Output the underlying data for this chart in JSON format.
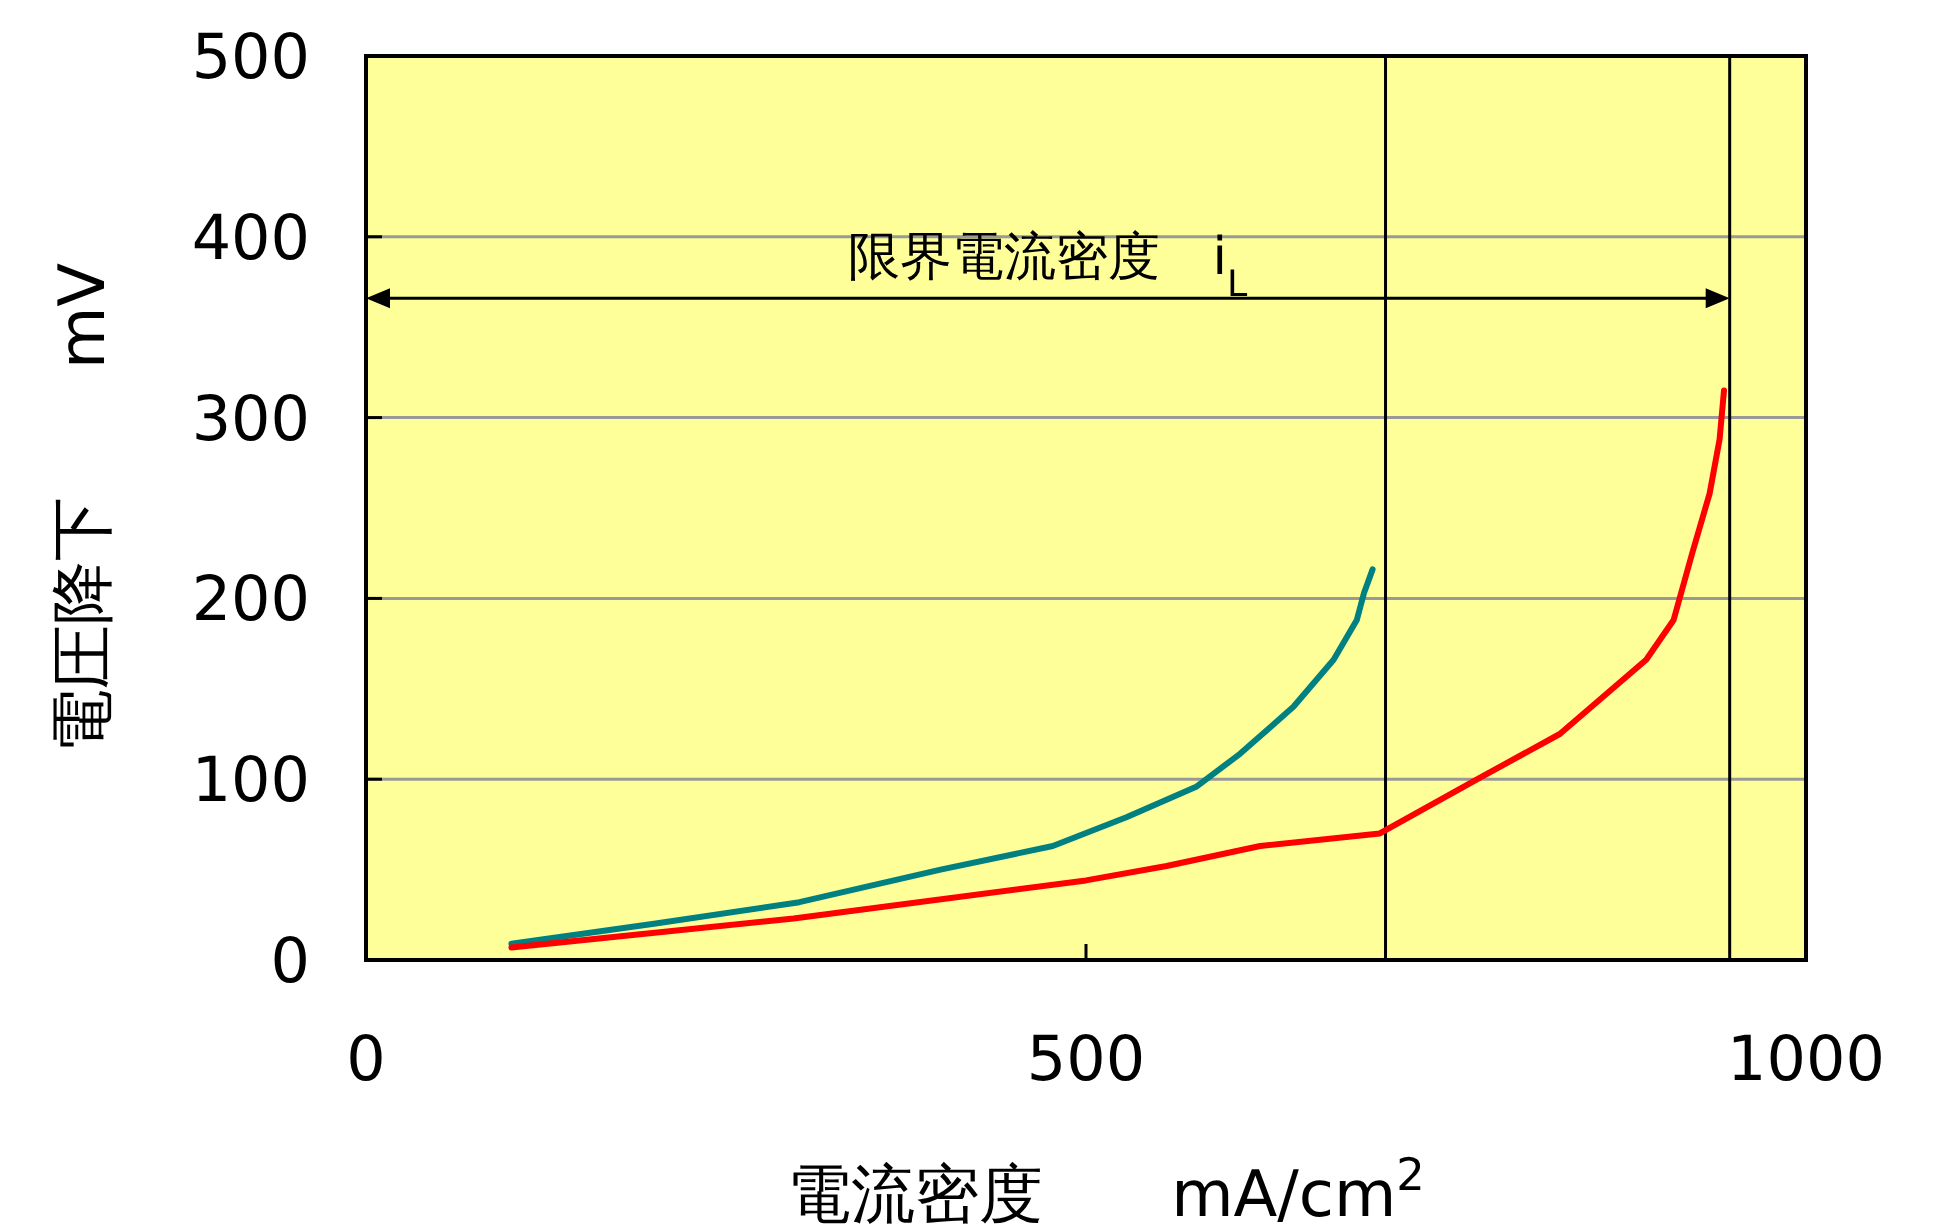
{
  "chart_data": {
    "type": "line",
    "xlabel": "電流密度　　mA/cm$^{2}$",
    "ylabel": "電圧降下　　mV",
    "xlim": [
      0,
      1000
    ],
    "ylim": [
      0,
      500
    ],
    "xticks": [
      0,
      500,
      1000
    ],
    "yticks": [
      0,
      100,
      200,
      300,
      400,
      500
    ],
    "grid": "y",
    "marker": "none",
    "line_style": "solid",
    "series": [
      {
        "color": "#008080",
        "x": [
          101,
          200,
          301,
          399,
          477,
          528,
          577,
          607,
          644,
          672,
          688,
          693,
          699
        ],
        "values": [
          9,
          20,
          32,
          50,
          63,
          79,
          96,
          114,
          140,
          166,
          188,
          203,
          216
        ]
      },
      {
        "color": "#ff0000",
        "x": [
          101,
          297,
          500,
          556,
          621,
          704,
          774,
          829,
          889,
          908,
          921,
          933,
          940,
          943
        ],
        "values": [
          7,
          23,
          44,
          52,
          63,
          70,
          101,
          125,
          166,
          188,
          225,
          258,
          288,
          315
        ]
      }
    ],
    "ref_lines": [
      {
        "axis": "x",
        "value": 708,
        "color": "#000000"
      },
      {
        "axis": "x",
        "value": 947,
        "color": "#000000"
      },
      {
        "axis": "y",
        "value": 366,
        "color": "#000000",
        "label": "限界電流密度　i$_{L}$"
      }
    ]
  }
}
